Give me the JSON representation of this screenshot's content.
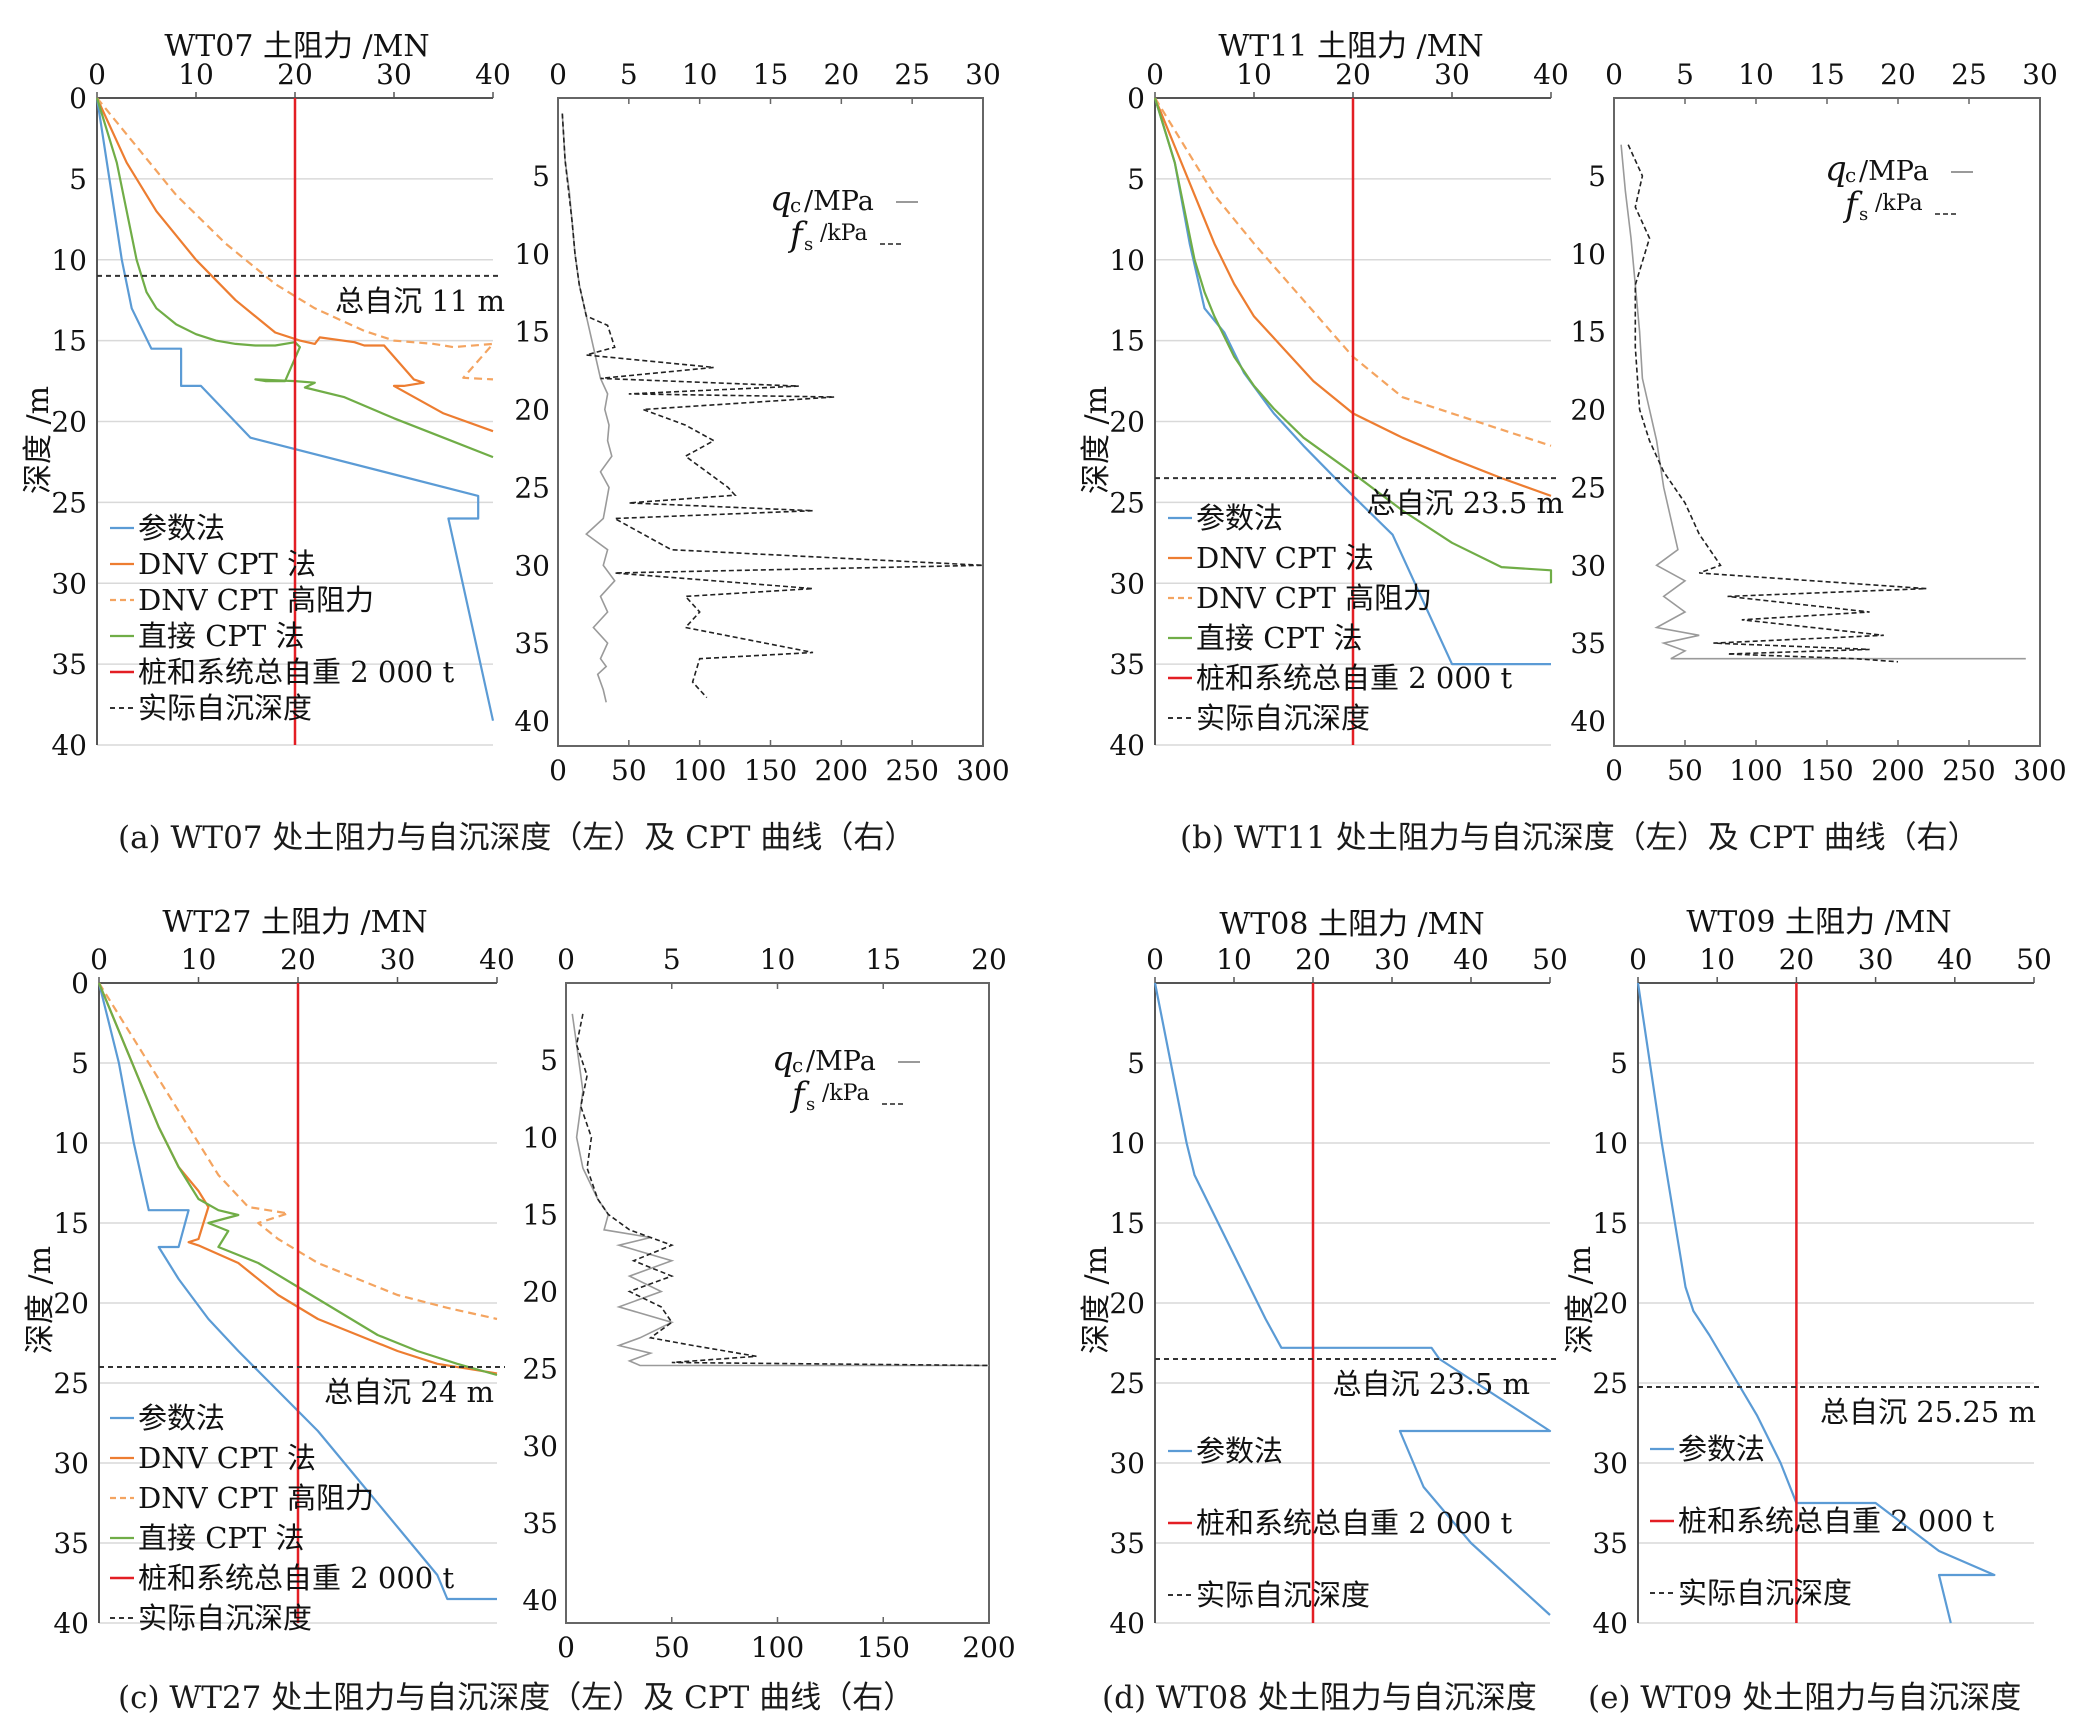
{
  "colors": {
    "param": "#5b9bd5",
    "dnv": "#ed7d31",
    "dnv_high": "#f4a460",
    "direct": "#70ad47",
    "weight": "#e31e24",
    "actual": "#333333",
    "qc": "#9a9a9a",
    "fs": "#222222",
    "grid": "#d9d9d9"
  },
  "captions": {
    "a": "(a)  WT07 处土阻力与自沉深度（左）及 CPT 曲线（右）",
    "b": "(b)  WT11 处土阻力与自沉深度（左）及 CPT 曲线（右）",
    "c": "(c)  WT27 处土阻力与自沉深度（左）及 CPT 曲线（右）",
    "d": "(d)  WT08 处土阻力与自沉深度",
    "e": "(e)  WT09 处土阻力与自沉深度"
  },
  "chart_data": [
    {
      "id": "wt07-resistance",
      "type": "line",
      "title": "WT07 土阻力 /MN",
      "ylabel": "深度 /m",
      "xlim": [
        0,
        40
      ],
      "ylim": [
        0,
        40
      ],
      "y_inverted": true,
      "x_ticks": [
        "0",
        "10",
        "20",
        "30",
        "40"
      ],
      "y_ticks": [
        "0",
        "5",
        "10",
        "15",
        "20",
        "25",
        "30",
        "35",
        "40"
      ],
      "settlement_label": "总自沉 11 m",
      "settlement_depth": 11,
      "weight_resistance": 20,
      "legend": [
        "参数法",
        "DNV CPT 法",
        "DNV CPT 高阻力",
        "直接 CPT 法",
        "桩和系统总自重 2 000 t",
        "实际自沉深度"
      ],
      "series": [
        {
          "name": "参数法",
          "key": "param",
          "x": [
            0,
            2.5,
            3.5,
            5.5,
            8.5,
            8.5,
            10.5,
            15.5,
            38.5,
            38.5,
            35.5,
            40
          ],
          "y": [
            0,
            10,
            13,
            15.5,
            15.5,
            17.8,
            17.8,
            21,
            24.6,
            26,
            26,
            38.5
          ]
        },
        {
          "name": "DNV CPT 法",
          "key": "dnv",
          "x": [
            0,
            3,
            6,
            10,
            14,
            18,
            20.5,
            22,
            22.5,
            26,
            27,
            28,
            29,
            32,
            33,
            31,
            30,
            35,
            40
          ],
          "y": [
            0,
            4,
            7,
            10,
            12.5,
            14.5,
            15,
            15.2,
            14.8,
            15.1,
            15.3,
            15.3,
            15.3,
            17.4,
            17.6,
            17.8,
            17.8,
            19.5,
            20.6
          ]
        },
        {
          "name": "DNV CPT 高阻力",
          "key": "dnv_high",
          "x": [
            0,
            4,
            8,
            13,
            18,
            22,
            27,
            30,
            34,
            36,
            40,
            37,
            40
          ],
          "y": [
            0,
            3,
            6,
            9,
            11.5,
            13,
            14.4,
            15,
            15.2,
            15.4,
            15.2,
            17.3,
            17.4
          ]
        },
        {
          "name": "直接 CPT 法",
          "key": "direct",
          "x": [
            0,
            2,
            3,
            4,
            5,
            6,
            8,
            10,
            12,
            14,
            16,
            18,
            20,
            20.5,
            19,
            17,
            16,
            20,
            22,
            21,
            25,
            30,
            35,
            40
          ],
          "y": [
            0,
            4,
            7,
            10,
            12,
            13,
            14,
            14.6,
            15,
            15.2,
            15.3,
            15.3,
            15.1,
            15.4,
            17.5,
            17.5,
            17.4,
            17.5,
            17.6,
            17.9,
            18.5,
            19.8,
            21,
            22.2
          ]
        }
      ]
    },
    {
      "id": "wt07-cpt",
      "type": "line",
      "top_ticks": [
        "0",
        "5",
        "10",
        "15",
        "20",
        "25",
        "30"
      ],
      "bottom_ticks": [
        "0",
        "50",
        "100",
        "150",
        "200",
        "250",
        "300"
      ],
      "y_ticks": [
        "5",
        "10",
        "15",
        "20",
        "25",
        "30",
        "35",
        "40"
      ],
      "ylim": [
        1,
        40
      ],
      "y_inverted": true,
      "legend_qc_sym": "q",
      "legend_qc_sub": "c",
      "legend_qc_unit": "/MPa",
      "legend_fs_sym": "f",
      "legend_fs_sub": "s",
      "legend_fs_unit": "/kPa",
      "qc": {
        "x_top": [
          0.3,
          0.5,
          0.8,
          1,
          1.2,
          1.5,
          2,
          2.5,
          3,
          3.5,
          3.3,
          3.6,
          3.5,
          3.8,
          3,
          3.6,
          3.4,
          3.2,
          2,
          3.5,
          3.2,
          4,
          3,
          3.5,
          2.5,
          3.5,
          3,
          3.4,
          2.8,
          3.2,
          3.4
        ],
        "y": [
          1,
          4,
          6,
          8,
          10,
          12,
          14,
          16,
          18,
          19,
          20,
          21,
          22,
          23,
          24,
          25,
          26,
          27,
          28,
          29,
          30,
          31,
          32,
          33,
          34,
          35,
          36,
          36.5,
          37,
          38,
          38.8
        ]
      },
      "fs": {
        "x_top": [
          0.3,
          0.5,
          1,
          1.2,
          1.5,
          2,
          3.5,
          4,
          2,
          11,
          3,
          17,
          5,
          19.5,
          6,
          9,
          11,
          9,
          10.5,
          12,
          12.5,
          5,
          18,
          4,
          8,
          30,
          4,
          18,
          9,
          10,
          9,
          18,
          10,
          9.5,
          10.5
        ],
        "y": [
          1,
          4,
          8,
          10,
          12,
          14,
          14.6,
          16,
          16.5,
          17.3,
          18,
          18.5,
          19,
          19.2,
          20,
          21,
          22,
          23,
          24,
          25,
          25.5,
          26,
          26.5,
          27,
          29,
          30,
          30.5,
          31.5,
          32,
          33,
          34,
          35.6,
          36,
          37.5,
          38.5
        ]
      }
    },
    {
      "id": "wt11-resistance",
      "type": "line",
      "title": "WT11 土阻力 /MN",
      "ylabel": "深度 /m",
      "xlim": [
        0,
        40
      ],
      "ylim": [
        0,
        40
      ],
      "y_inverted": true,
      "x_ticks": [
        "0",
        "10",
        "20",
        "30",
        "40"
      ],
      "y_ticks": [
        "0",
        "5",
        "10",
        "15",
        "20",
        "25",
        "30",
        "35",
        "40"
      ],
      "settlement_label": "总自沉 23.5 m",
      "settlement_depth": 23.5,
      "weight_resistance": 20,
      "legend": [
        "参数法",
        "DNV CPT 法",
        "DNV CPT 高阻力",
        "直接 CPT 法",
        "桩和系统总自重 2 000 t",
        "实际自沉深度"
      ],
      "series": [
        {
          "name": "参数法",
          "key": "param",
          "x": [
            0,
            2,
            3.5,
            5,
            7,
            9,
            12,
            15,
            19,
            24,
            30,
            40
          ],
          "y": [
            0,
            4,
            9,
            13,
            14.5,
            17,
            19.5,
            21.5,
            24,
            27,
            35,
            35
          ]
        },
        {
          "name": "DNV CPT 法",
          "key": "dnv",
          "x": [
            0,
            2,
            4,
            6,
            8,
            10,
            13,
            16,
            20,
            25,
            30,
            35,
            40
          ],
          "y": [
            0,
            3,
            6,
            9,
            11.5,
            13.5,
            15.5,
            17.5,
            19.5,
            21,
            22.3,
            23.5,
            24.6
          ]
        },
        {
          "name": "DNV CPT 高阻力",
          "key": "dnv_high",
          "x": [
            0,
            3,
            6,
            10,
            15,
            20,
            25,
            30,
            35,
            40
          ],
          "y": [
            0,
            3,
            6,
            9,
            12.5,
            16,
            18.5,
            19.5,
            20.5,
            21.5
          ]
        },
        {
          "name": "直接 CPT 法",
          "key": "direct",
          "x": [
            0,
            2,
            3,
            4,
            5,
            6,
            8,
            10,
            12,
            15,
            20,
            25,
            30,
            35,
            40,
            40
          ],
          "y": [
            0,
            4,
            7,
            10,
            12,
            13.5,
            16,
            17.8,
            19.2,
            21,
            23.2,
            25.5,
            27.5,
            29,
            29.2,
            30
          ]
        }
      ]
    },
    {
      "id": "wt11-cpt",
      "type": "line",
      "top_ticks": [
        "0",
        "5",
        "10",
        "15",
        "20",
        "25",
        "30"
      ],
      "bottom_ticks": [
        "0",
        "50",
        "100",
        "150",
        "200",
        "250",
        "300"
      ],
      "y_ticks": [
        "5",
        "10",
        "15",
        "20",
        "25",
        "30",
        "35",
        "40"
      ],
      "ylim": [
        1,
        40
      ],
      "y_inverted": true,
      "legend_qc_sym": "q",
      "legend_qc_sub": "c",
      "legend_qc_unit": "/MPa",
      "legend_fs_sym": "f",
      "legend_fs_sub": "s",
      "legend_fs_unit": "/kPa",
      "qc": {
        "x_top": [
          0.5,
          0.8,
          1.2,
          1.5,
          1.8,
          2,
          2.5,
          3,
          3.5,
          4,
          4.5,
          3,
          5,
          3.5,
          5,
          3,
          6,
          3.5,
          5,
          4,
          29
        ],
        "y": [
          3,
          6,
          9,
          12,
          15,
          18,
          20,
          22,
          25,
          27,
          29,
          30,
          31,
          32,
          33,
          34,
          34.5,
          35,
          35.5,
          36,
          36
        ]
      },
      "fs": {
        "x_top": [
          1,
          2,
          1.5,
          2.5,
          1.5,
          1.5,
          1.8,
          2.5,
          3.5,
          5,
          6,
          7.5,
          6,
          22,
          8,
          18,
          9,
          19,
          7,
          18,
          8,
          17,
          20
        ],
        "y": [
          3,
          5,
          7,
          9,
          12,
          16,
          20,
          22,
          24,
          26,
          28,
          30,
          30.5,
          31.5,
          32,
          33,
          33.5,
          34.5,
          35,
          35.4,
          35.7,
          36,
          36.2
        ]
      }
    },
    {
      "id": "wt27-resistance",
      "type": "line",
      "title": "WT27 土阻力 /MN",
      "ylabel": "深度 /m",
      "xlim": [
        0,
        40
      ],
      "ylim": [
        0,
        40
      ],
      "y_inverted": true,
      "x_ticks": [
        "0",
        "10",
        "20",
        "30",
        "40"
      ],
      "y_ticks": [
        "0",
        "5",
        "10",
        "15",
        "20",
        "25",
        "30",
        "35",
        "40"
      ],
      "settlement_label": "总自沉 24 m",
      "settlement_depth": 24,
      "weight_resistance": 20,
      "legend": [
        "参数法",
        "DNV CPT 法",
        "DNV CPT 高阻力",
        "直接 CPT 法",
        "桩和系统总自重 2 000 t",
        "实际自沉深度"
      ],
      "series": [
        {
          "name": "参数法",
          "key": "param",
          "x": [
            0,
            2,
            3.5,
            5,
            9,
            8,
            6,
            8,
            11,
            14,
            18,
            22,
            26,
            30,
            34,
            35,
            40
          ],
          "y": [
            0,
            5,
            10,
            14.2,
            14.2,
            16.5,
            16.5,
            18.5,
            21,
            23,
            25.5,
            28,
            31,
            34,
            37,
            38.5,
            38.5
          ]
        },
        {
          "name": "DNV CPT 法",
          "key": "dnv",
          "x": [
            0,
            2,
            4,
            6,
            8,
            10,
            11,
            10,
            9,
            10,
            14,
            18,
            22,
            26,
            30,
            34,
            38,
            40
          ],
          "y": [
            0,
            3,
            6,
            9,
            11.5,
            13,
            14,
            16,
            16.2,
            16.4,
            17.5,
            19.5,
            21,
            22,
            23,
            23.8,
            24.2,
            24.4
          ]
        },
        {
          "name": "DNV CPT 高阻力",
          "key": "dnv_high",
          "x": [
            0,
            3,
            6,
            9,
            12,
            15,
            17,
            19,
            16,
            18,
            22,
            26,
            30,
            35,
            40
          ],
          "y": [
            0,
            3,
            6,
            9,
            12,
            14,
            14.2,
            14.4,
            15,
            16,
            17.5,
            18.5,
            19.5,
            20.3,
            21
          ]
        },
        {
          "name": "直接 CPT 法",
          "key": "direct",
          "x": [
            0,
            2,
            4,
            6,
            8,
            10,
            12,
            14,
            11,
            13,
            12,
            16,
            20,
            24,
            28,
            32,
            36,
            40
          ],
          "y": [
            0,
            3,
            6,
            9,
            11.5,
            13.5,
            14.2,
            14.5,
            15,
            15.5,
            16.5,
            17.5,
            19,
            20.5,
            22,
            23,
            23.8,
            24.5
          ]
        }
      ]
    },
    {
      "id": "wt27-cpt",
      "type": "line",
      "top_ticks": [
        "0",
        "5",
        "10",
        "15",
        "20"
      ],
      "bottom_ticks": [
        "0",
        "50",
        "100",
        "150",
        "200"
      ],
      "y_ticks": [
        "5",
        "10",
        "15",
        "20",
        "25",
        "30",
        "35",
        "40"
      ],
      "ylim": [
        1,
        40
      ],
      "y_inverted": true,
      "legend_qc_sym": "q",
      "legend_qc_sub": "c",
      "legend_qc_unit": "/MPa",
      "legend_fs_sym": "f",
      "legend_fs_sub": "s",
      "legend_fs_unit": "/kPa",
      "qc": {
        "x_top": [
          0.3,
          0.5,
          0.8,
          0.5,
          0.8,
          1.5,
          2,
          1.8,
          4,
          2.5,
          5,
          3,
          4.5,
          2.5,
          5,
          3.5,
          2.5,
          4,
          3,
          3.5,
          20
        ],
        "y": [
          2,
          4,
          7,
          10,
          12,
          14,
          15,
          16,
          16.5,
          17,
          18,
          19,
          20,
          21,
          22,
          23,
          23.5,
          24,
          24.5,
          24.8,
          24.8
        ]
      },
      "fs": {
        "x_top": [
          0.8,
          0.5,
          1,
          0.7,
          1.2,
          1,
          1.5,
          2,
          2.5,
          3,
          5,
          3.2,
          5,
          3,
          4.5,
          5,
          4,
          6,
          9,
          5,
          20
        ],
        "y": [
          2,
          4,
          6,
          8,
          10,
          12,
          14,
          15,
          15.5,
          16,
          17,
          18,
          19,
          20,
          21,
          22,
          23,
          23.5,
          24.2,
          24.6,
          24.8
        ]
      }
    },
    {
      "id": "wt08-resistance",
      "type": "line",
      "title": "WT08 土阻力 /MN",
      "ylabel": "深度 /m",
      "xlim": [
        0,
        50
      ],
      "ylim": [
        0,
        40
      ],
      "y_inverted": true,
      "x_ticks": [
        "0",
        "10",
        "20",
        "30",
        "40",
        "50"
      ],
      "y_ticks": [
        "5",
        "10",
        "15",
        "20",
        "25",
        "30",
        "35",
        "40"
      ],
      "settlement_label": "总自沉 23.5 m",
      "settlement_depth": 23.5,
      "weight_resistance": 20,
      "legend": [
        "参数法",
        "桩和系统总自重 2 000 t",
        "实际自沉深度"
      ],
      "series": [
        {
          "name": "参数法",
          "key": "param",
          "x": [
            0,
            2,
            4,
            5,
            8,
            11,
            14,
            16,
            35,
            36,
            50,
            31,
            34,
            40,
            50
          ],
          "y": [
            0,
            5,
            10,
            12,
            15,
            18,
            21,
            22.8,
            22.8,
            23.5,
            28,
            28,
            31.5,
            35,
            39.5
          ]
        }
      ]
    },
    {
      "id": "wt09-resistance",
      "type": "line",
      "title": "WT09 土阻力 /MN",
      "ylabel": "深度 /m",
      "xlim": [
        0,
        50
      ],
      "ylim": [
        0,
        40
      ],
      "y_inverted": true,
      "x_ticks": [
        "0",
        "10",
        "20",
        "30",
        "40",
        "50"
      ],
      "y_ticks": [
        "5",
        "10",
        "15",
        "20",
        "25",
        "30",
        "35",
        "40"
      ],
      "settlement_label": "总自沉 25.25 m",
      "settlement_depth": 25.25,
      "weight_resistance": 20,
      "legend": [
        "参数法",
        "桩和系统总自重 2 000 t",
        "实际自沉深度"
      ],
      "series": [
        {
          "name": "参数法",
          "key": "param",
          "x": [
            0,
            3,
            5,
            6,
            7,
            9,
            12,
            15,
            18,
            20,
            30,
            34,
            38,
            45,
            38,
            39.5
          ],
          "y": [
            0,
            10,
            16,
            19,
            20.5,
            22,
            24.5,
            27,
            30,
            32.5,
            32.5,
            34,
            35.5,
            37,
            37,
            40
          ]
        }
      ]
    }
  ]
}
